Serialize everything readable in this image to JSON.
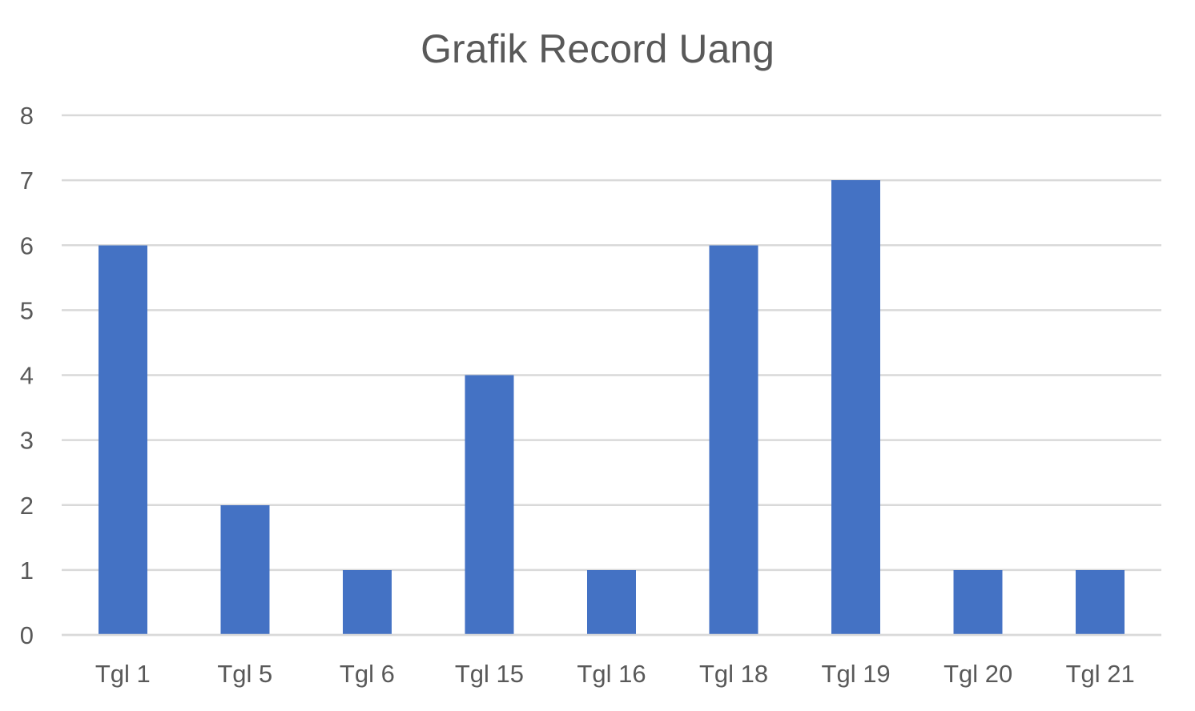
{
  "chart_data": {
    "type": "bar",
    "title": "Grafik Record Uang",
    "xlabel": "",
    "ylabel": "",
    "categories": [
      "Tgl 1",
      "Tgl 5",
      "Tgl 6",
      "Tgl 15",
      "Tgl 16",
      "Tgl 18",
      "Tgl 19",
      "Tgl 20",
      "Tgl 21"
    ],
    "values": [
      6,
      2,
      1,
      4,
      1,
      6,
      7,
      1,
      1
    ],
    "ylim": [
      0,
      8
    ],
    "yticks": [
      "0",
      "1",
      "2",
      "3",
      "4",
      "5",
      "6",
      "7",
      "8"
    ],
    "grid": true,
    "legend": "none",
    "bar_color": "#4472C4",
    "grid_color": "#D9D9D9",
    "text_color": "#595959"
  }
}
